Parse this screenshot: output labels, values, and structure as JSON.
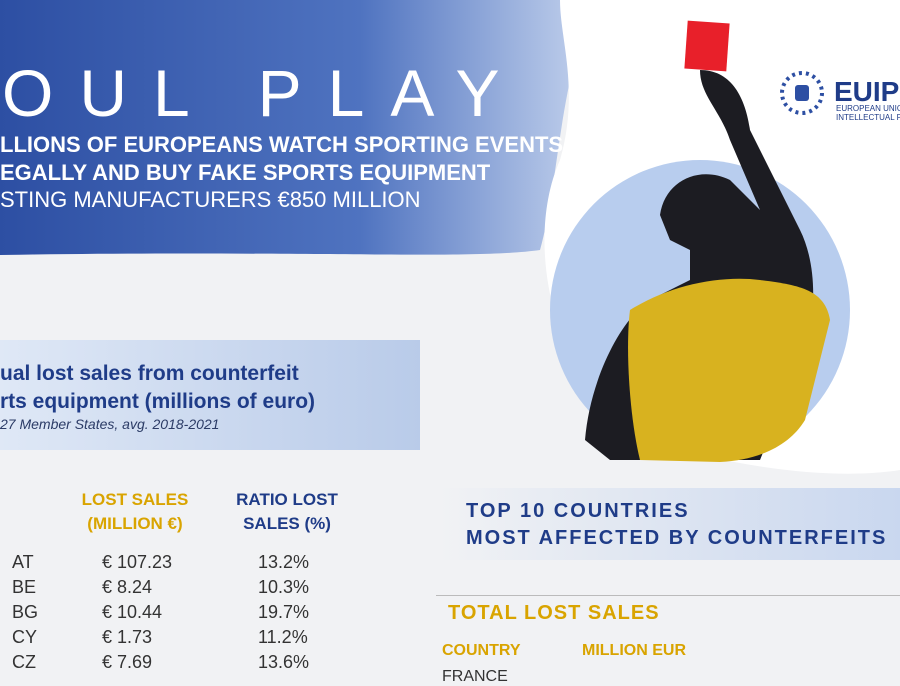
{
  "header": {
    "title": "OUL PLAY",
    "lines": [
      "LLIONS OF EUROPEANS WATCH SPORTING EVENTS",
      "EGALLY AND BUY FAKE SPORTS EQUIPMENT"
    ],
    "cost": "STING MANUFACTURERS €850 MILLION"
  },
  "logo": {
    "name": "EUIP",
    "line1": "EUROPEAN UNION",
    "line2": "INTELLECTUAL P"
  },
  "section": {
    "title_lines": [
      "ual lost sales from counterfeit",
      "rts equipment (millions of euro)"
    ],
    "note": "27 Member States, avg. 2018-2021"
  },
  "table": {
    "headers": [
      "LOST SALES (MILLION €)",
      "RATIO LOST SALES (%)"
    ],
    "rows": [
      [
        "AT",
        "€ 107.23",
        "13.2%"
      ],
      [
        "BE",
        "€ 8.24",
        "10.3%"
      ],
      [
        "BG",
        "€ 10.44",
        "19.7%"
      ],
      [
        "CY",
        "€ 1.73",
        "11.2%"
      ],
      [
        "CZ",
        "€ 7.69",
        "13.6%"
      ]
    ]
  },
  "top10": {
    "title_lines": [
      "TOP 10 COUNTRIES",
      "MOST AFFECTED BY COUNTERFEITS"
    ],
    "subtitle": "TOTAL LOST SALES",
    "headers": [
      "COUNTRY",
      "MILLION EUR"
    ],
    "first_row": "FRANCE"
  }
}
